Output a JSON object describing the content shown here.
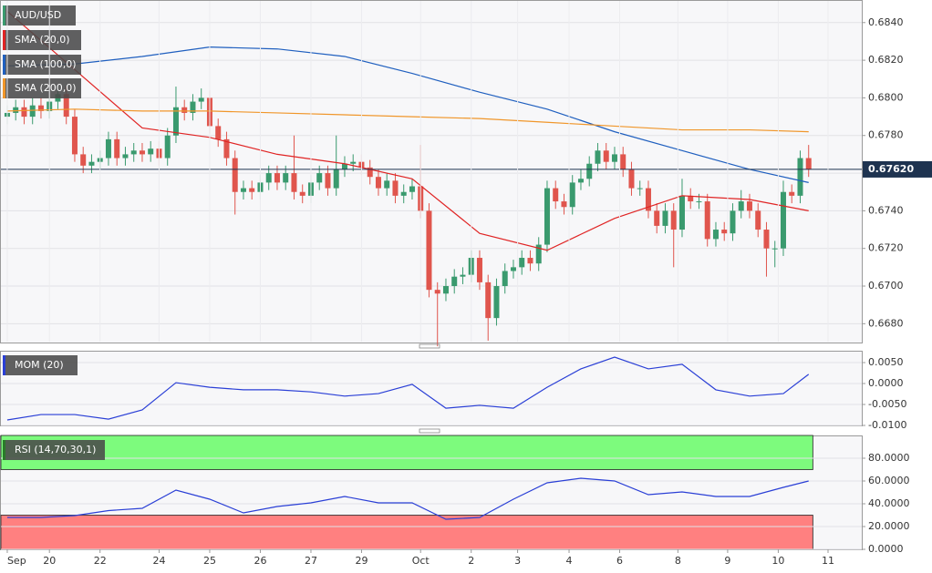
{
  "chart_data": [
    {
      "type": "candlestick",
      "title": "AUD/USD",
      "up_color": "#3a9a6e",
      "down_color": "#e0554d",
      "xlim": [
        -0.86,
        101.3
      ],
      "xticks": [
        {
          "value": 0,
          "label": "Sep"
        },
        {
          "value": 5,
          "label": "20"
        },
        {
          "value": 11,
          "label": "22"
        },
        {
          "value": 18,
          "label": "24"
        },
        {
          "value": 24,
          "label": "25"
        },
        {
          "value": 30,
          "label": "26"
        },
        {
          "value": 36,
          "label": "27"
        },
        {
          "value": 42,
          "label": "29"
        },
        {
          "value": 49,
          "label": "Oct"
        },
        {
          "value": 55,
          "label": "2"
        },
        {
          "value": 60.5,
          "label": "3"
        },
        {
          "value": 66.6,
          "label": "4"
        },
        {
          "value": 72.6,
          "label": "6"
        },
        {
          "value": 79.5,
          "label": "8"
        },
        {
          "value": 85.4,
          "label": "9"
        },
        {
          "value": 91.4,
          "label": "10"
        },
        {
          "value": 97.3,
          "label": "11"
        }
      ],
      "ylim": [
        0.667,
        0.6852
      ],
      "yticks": [
        {
          "value": 0.668,
          "label": "0.6680"
        },
        {
          "value": 0.67,
          "label": "0.6700"
        },
        {
          "value": 0.672,
          "label": "0.6720"
        },
        {
          "value": 0.674,
          "label": "0.6740"
        },
        {
          "value": 0.676,
          "label": "0.6760"
        },
        {
          "value": 0.678,
          "label": "0.6780"
        },
        {
          "value": 0.68,
          "label": "0.6800"
        },
        {
          "value": 0.682,
          "label": "0.6820"
        },
        {
          "value": 0.684,
          "label": "0.6840"
        }
      ],
      "grid": true,
      "open": [
        0.679,
        0.6792,
        0.6795,
        0.679,
        0.6796,
        0.6793,
        0.6798,
        0.6802,
        0.679,
        0.677,
        0.6764,
        0.6766,
        0.6768,
        0.6778,
        0.6768,
        0.677,
        0.6772,
        0.677,
        0.6773,
        0.6768,
        0.678,
        0.6795,
        0.6792,
        0.6798,
        0.68,
        0.6785,
        0.6778,
        0.6768,
        0.675,
        0.6752,
        0.675,
        0.6755,
        0.676,
        0.6755,
        0.676,
        0.675,
        0.6748,
        0.6755,
        0.676,
        0.6752,
        0.6762,
        0.6765,
        0.6766,
        0.6763,
        0.6758,
        0.6752,
        0.6756,
        0.6748,
        0.675,
        0.6753,
        0.674,
        0.6698,
        0.6696,
        0.67,
        0.6705,
        0.6706,
        0.6715,
        0.6702,
        0.6683,
        0.67,
        0.6708,
        0.671,
        0.6715,
        0.6712,
        0.6722,
        0.6752,
        0.6745,
        0.6742,
        0.6755,
        0.6757,
        0.6765,
        0.6772,
        0.6766,
        0.677,
        0.6762,
        0.6752,
        0.6752,
        0.674,
        0.6732,
        0.674,
        0.673,
        0.6748,
        0.6745,
        0.6745,
        0.6725,
        0.673,
        0.6728,
        0.674,
        0.6745,
        0.674,
        0.673,
        0.672,
        0.672,
        0.675,
        0.6748,
        0.6768
      ],
      "high": [
        0.6796,
        0.6799,
        0.6799,
        0.68,
        0.68,
        0.6802,
        0.6806,
        0.6806,
        0.6794,
        0.6774,
        0.677,
        0.6772,
        0.6782,
        0.6782,
        0.6774,
        0.6776,
        0.6776,
        0.6777,
        0.6777,
        0.6784,
        0.6806,
        0.6799,
        0.6802,
        0.6805,
        0.6804,
        0.6789,
        0.6782,
        0.6772,
        0.6756,
        0.6756,
        0.6759,
        0.6764,
        0.6764,
        0.6764,
        0.678,
        0.6754,
        0.6759,
        0.6764,
        0.6764,
        0.678,
        0.6769,
        0.677,
        0.677,
        0.6767,
        0.6762,
        0.676,
        0.676,
        0.6754,
        0.6757,
        0.6775,
        0.6744,
        0.6702,
        0.6704,
        0.6709,
        0.671,
        0.6719,
        0.6719,
        0.6706,
        0.6704,
        0.6712,
        0.6714,
        0.6719,
        0.6719,
        0.6726,
        0.6756,
        0.6756,
        0.6749,
        0.6759,
        0.6762,
        0.6769,
        0.6776,
        0.6776,
        0.6774,
        0.6774,
        0.6766,
        0.6756,
        0.6756,
        0.6744,
        0.6744,
        0.6744,
        0.6757,
        0.6752,
        0.6749,
        0.6749,
        0.6734,
        0.6734,
        0.6744,
        0.6751,
        0.6749,
        0.6744,
        0.6734,
        0.6724,
        0.6756,
        0.6754,
        0.6772,
        0.6775
      ],
      "low": [
        0.6786,
        0.6788,
        0.6786,
        0.6786,
        0.6789,
        0.6789,
        0.6794,
        0.6786,
        0.6766,
        0.676,
        0.676,
        0.6762,
        0.6764,
        0.6764,
        0.6764,
        0.6766,
        0.6766,
        0.6766,
        0.6764,
        0.6764,
        0.6776,
        0.6788,
        0.6788,
        0.6794,
        0.6781,
        0.6774,
        0.6764,
        0.6738,
        0.6746,
        0.6746,
        0.6746,
        0.6751,
        0.6751,
        0.6751,
        0.6746,
        0.6744,
        0.6744,
        0.6751,
        0.6748,
        0.6748,
        0.6758,
        0.6761,
        0.6759,
        0.6754,
        0.6748,
        0.6748,
        0.6744,
        0.6744,
        0.6746,
        0.6736,
        0.6694,
        0.6668,
        0.6692,
        0.6696,
        0.6701,
        0.6702,
        0.6698,
        0.6671,
        0.6679,
        0.6696,
        0.6704,
        0.6706,
        0.6708,
        0.6708,
        0.6718,
        0.6741,
        0.6738,
        0.6738,
        0.6751,
        0.6753,
        0.6761,
        0.6762,
        0.6762,
        0.6758,
        0.6748,
        0.6748,
        0.6736,
        0.6728,
        0.6728,
        0.671,
        0.6726,
        0.6741,
        0.6741,
        0.6721,
        0.6721,
        0.6724,
        0.6724,
        0.6736,
        0.6736,
        0.6726,
        0.6705,
        0.671,
        0.6716,
        0.6744,
        0.6744,
        0.6758
      ],
      "close": [
        0.6792,
        0.6795,
        0.679,
        0.6796,
        0.6793,
        0.6798,
        0.6802,
        0.679,
        0.677,
        0.6764,
        0.6766,
        0.6768,
        0.6778,
        0.6768,
        0.677,
        0.6772,
        0.677,
        0.6773,
        0.6768,
        0.678,
        0.6795,
        0.6792,
        0.6798,
        0.68,
        0.6785,
        0.6778,
        0.6768,
        0.675,
        0.6752,
        0.675,
        0.6755,
        0.676,
        0.6755,
        0.676,
        0.675,
        0.6748,
        0.6755,
        0.676,
        0.6752,
        0.6762,
        0.6765,
        0.6766,
        0.6763,
        0.6758,
        0.6752,
        0.6756,
        0.6748,
        0.675,
        0.6753,
        0.674,
        0.6698,
        0.6696,
        0.67,
        0.6705,
        0.6706,
        0.6715,
        0.6702,
        0.6683,
        0.67,
        0.6708,
        0.671,
        0.6715,
        0.6712,
        0.6722,
        0.6752,
        0.6745,
        0.6742,
        0.6755,
        0.6757,
        0.6765,
        0.6772,
        0.6766,
        0.677,
        0.6762,
        0.6752,
        0.6752,
        0.674,
        0.6732,
        0.674,
        0.673,
        0.6748,
        0.6745,
        0.6745,
        0.6725,
        0.673,
        0.6728,
        0.674,
        0.6745,
        0.674,
        0.673,
        0.672,
        0.672,
        0.675,
        0.6748,
        0.6768,
        0.6762
      ],
      "series": [
        {
          "name": "SMA (20,0)",
          "color": "#e02424",
          "x": [
            0,
            8,
            16,
            24,
            32,
            40,
            48,
            56,
            64,
            72,
            80,
            88,
            95
          ],
          "values": [
            0.6846,
            0.6815,
            0.6784,
            0.6779,
            0.677,
            0.6765,
            0.6757,
            0.6728,
            0.6719,
            0.6736,
            0.6748,
            0.6746,
            0.674
          ]
        },
        {
          "name": "SMA (100,0)",
          "color": "#1f5fbf",
          "x": [
            0,
            8,
            16,
            24,
            32,
            40,
            48,
            56,
            64,
            72,
            80,
            88,
            95
          ],
          "values": [
            0.6817,
            0.6818,
            0.6822,
            0.6827,
            0.6826,
            0.6822,
            0.6813,
            0.6803,
            0.6794,
            0.6782,
            0.6772,
            0.6762,
            0.6755
          ]
        },
        {
          "name": "SMA (200,0)",
          "color": "#f0962a",
          "x": [
            0,
            8,
            16,
            24,
            32,
            40,
            48,
            56,
            64,
            72,
            80,
            88,
            95
          ],
          "values": [
            0.6793,
            0.6794,
            0.6793,
            0.6793,
            0.6792,
            0.6791,
            0.679,
            0.6789,
            0.6787,
            0.6785,
            0.6783,
            0.6783,
            0.6782
          ]
        }
      ],
      "last_price": {
        "value": 0.6762,
        "label": "0.67620"
      }
    },
    {
      "type": "line",
      "title": "MOM (20)",
      "color": "#2a3fd6",
      "ylim": [
        -0.01,
        0.00783
      ],
      "yticks": [
        {
          "value": 0.005,
          "label": "0.0050"
        },
        {
          "value": 0,
          "label": "0.0000"
        },
        {
          "value": -0.005,
          "label": "-0.0050"
        },
        {
          "value": -0.01,
          "label": "-0.0100"
        }
      ],
      "grid": true,
      "x": [
        0,
        4,
        8,
        12,
        16,
        20,
        24,
        28,
        32,
        36,
        40,
        44,
        48,
        52,
        56,
        60,
        64,
        68,
        72,
        76,
        80,
        84,
        88,
        92,
        95
      ],
      "values": [
        -0.0087,
        -0.0074,
        -0.0074,
        -0.0085,
        -0.0063,
        0.0002,
        -0.0009,
        -0.0015,
        -0.0015,
        -0.002,
        -0.003,
        -0.0024,
        -0.0002,
        -0.0059,
        -0.0052,
        -0.0059,
        -0.0009,
        0.0035,
        0.0063,
        0.0035,
        0.0046,
        -0.0015,
        -0.003,
        -0.0024,
        0.0022
      ]
    },
    {
      "type": "line",
      "title": "RSI (14,70,30,1)",
      "color": "#2a3fd6",
      "ylim": [
        0,
        100
      ],
      "yticks": [
        {
          "value": 0,
          "label": "0.0000"
        },
        {
          "value": 20,
          "label": "20.0000"
        },
        {
          "value": 40,
          "label": "40.0000"
        },
        {
          "value": 60,
          "label": "60.0000"
        },
        {
          "value": 80,
          "label": "80.0000"
        }
      ],
      "grid": true,
      "bands": [
        {
          "from": 70,
          "to": 100,
          "color": "#7dfb7d"
        },
        {
          "from": 0,
          "to": 30,
          "color": "#ff8080"
        }
      ],
      "x": [
        0,
        4,
        8,
        12,
        16,
        20,
        24,
        28,
        32,
        36,
        40,
        44,
        48,
        52,
        56,
        60,
        64,
        68,
        72,
        76,
        80,
        84,
        88,
        92,
        95
      ],
      "values": [
        28,
        28,
        29.6,
        34,
        36,
        52,
        44,
        32,
        37.6,
        40.8,
        46.4,
        40.8,
        40.8,
        26.4,
        28,
        44,
        58.4,
        62.4,
        60,
        48,
        50.4,
        46.4,
        46.4,
        54.4,
        60
      ]
    }
  ]
}
